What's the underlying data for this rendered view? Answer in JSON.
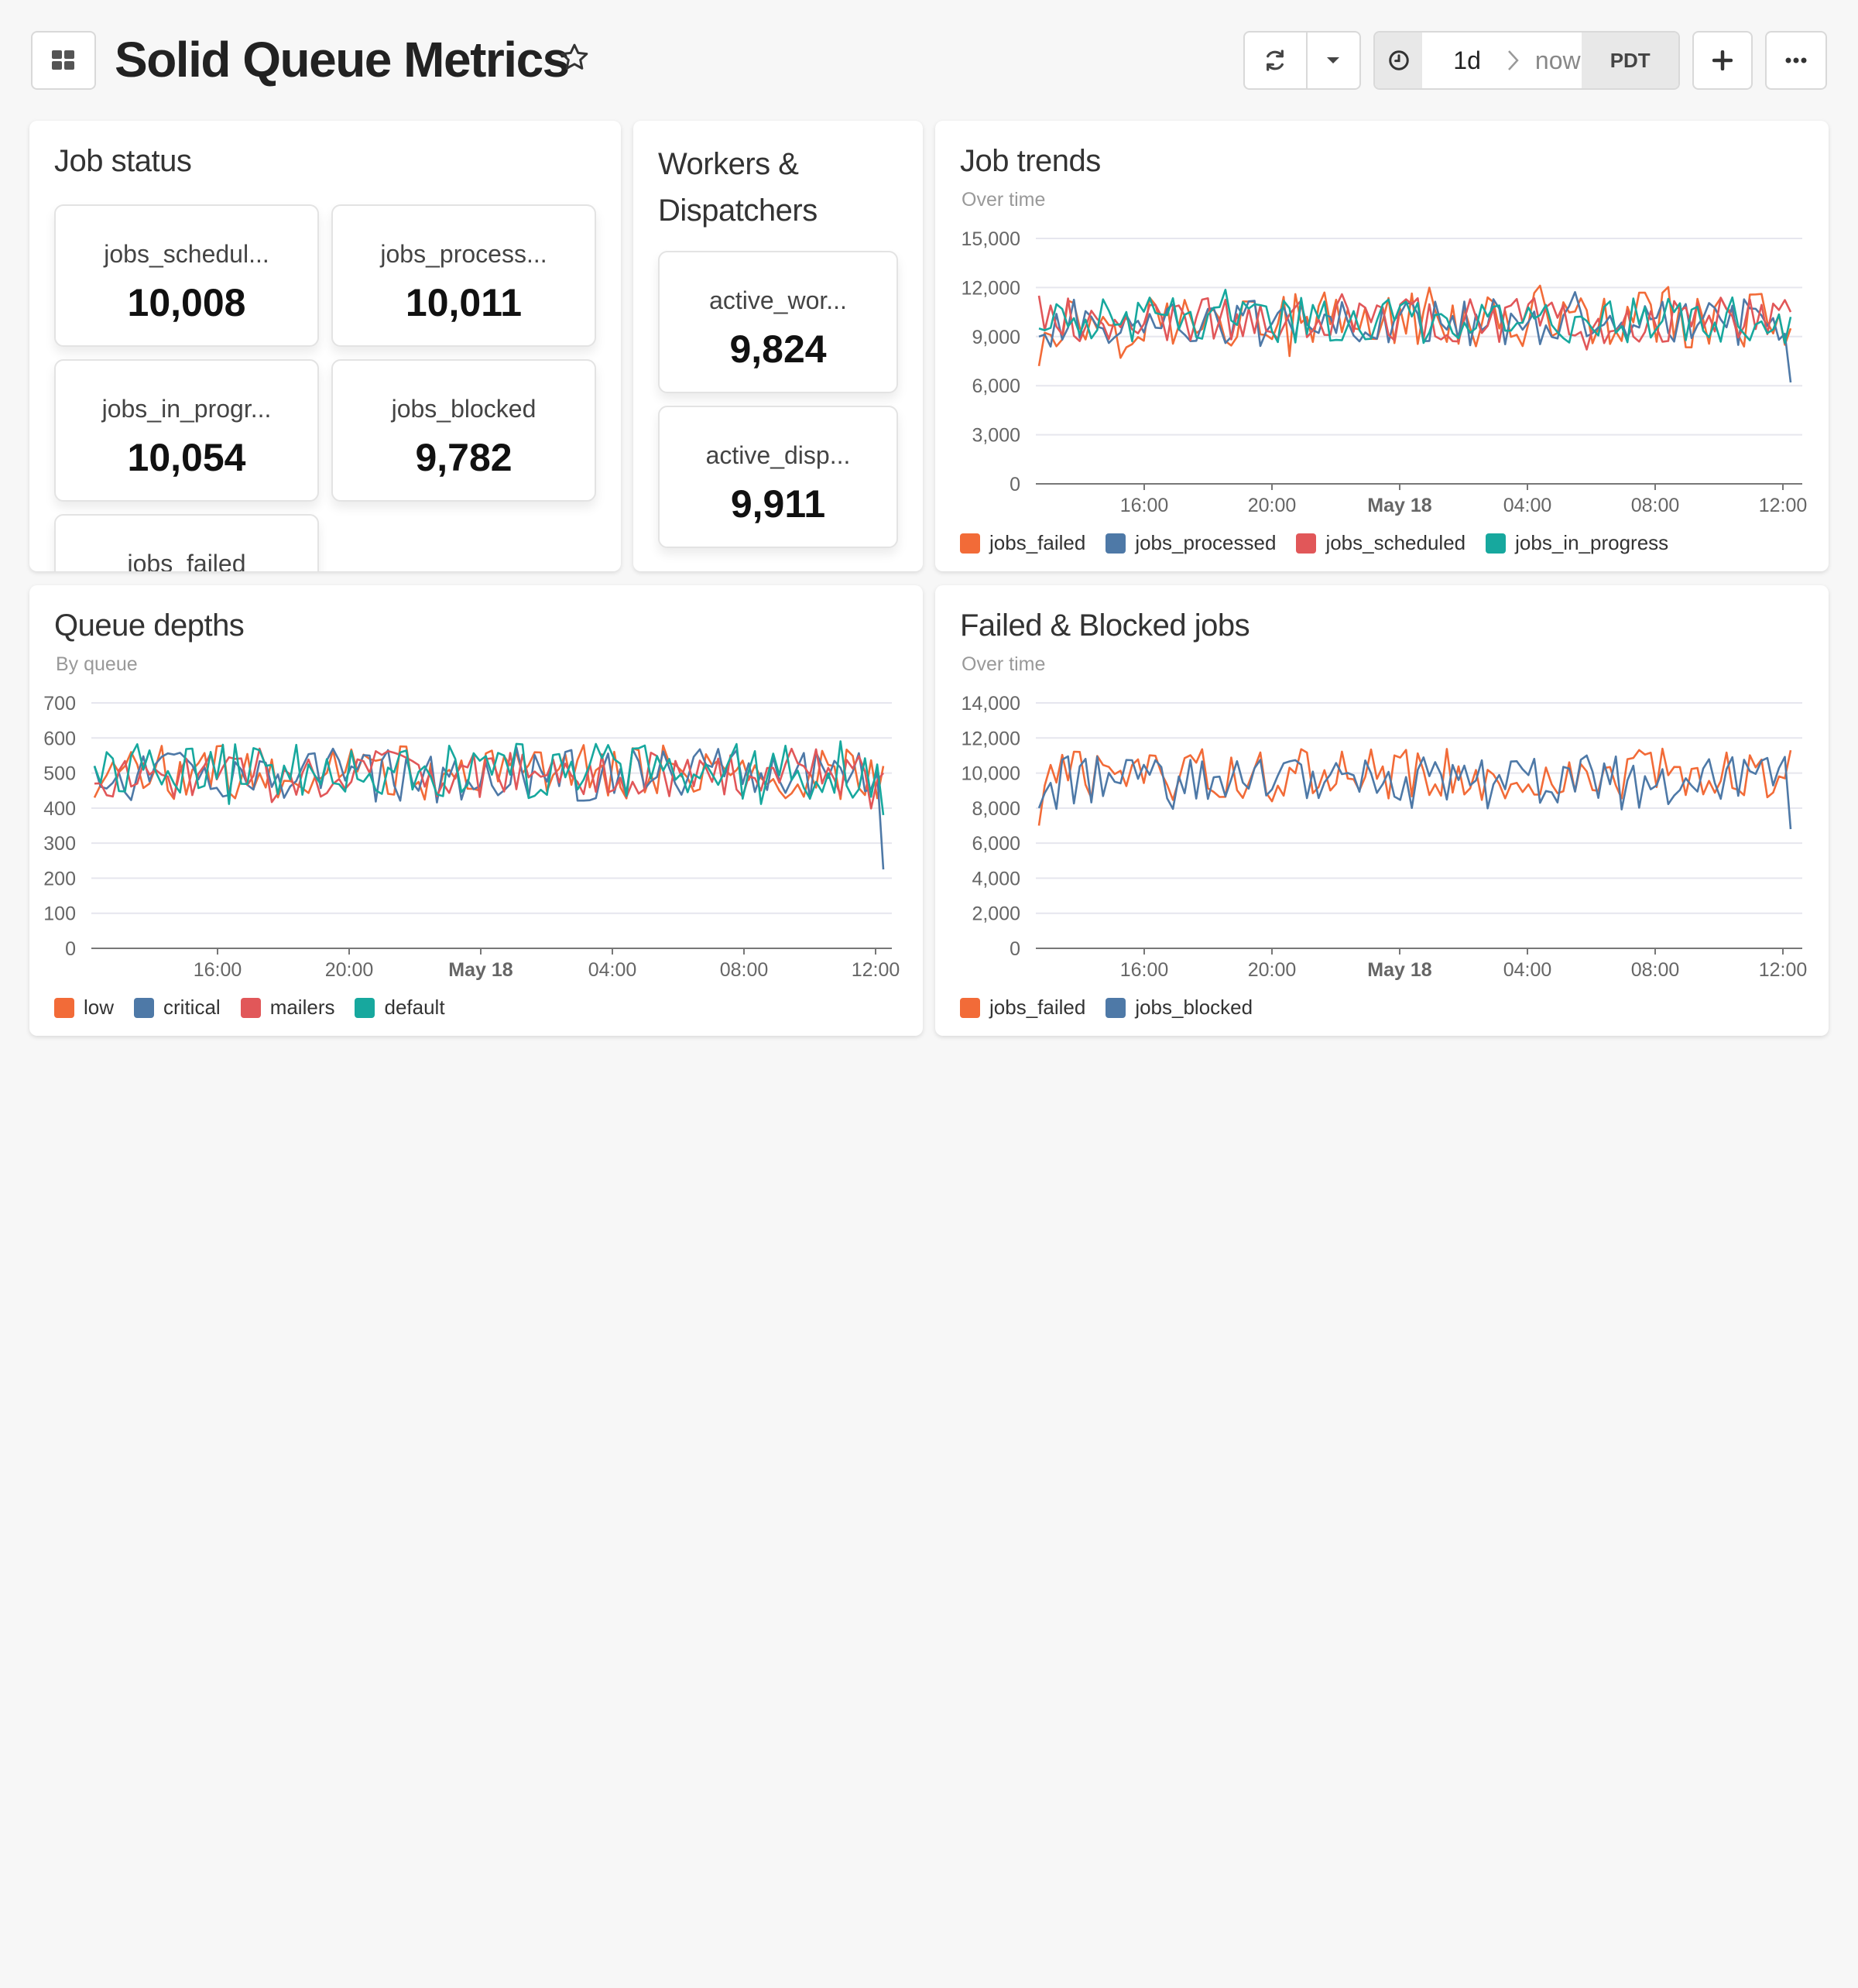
{
  "header": {
    "title": "Solid Queue Metrics",
    "time_range": "1d",
    "time_end": "now",
    "timezone": "PDT",
    "icons": {
      "grid": "grid-icon",
      "star": "star-icon",
      "refresh": "refresh-icon",
      "dropdown": "caret-down-icon",
      "clock": "clock-icon",
      "add": "plus-icon",
      "more": "ellipsis-icon"
    }
  },
  "job_status": {
    "title": "Job status",
    "stats": [
      {
        "label": "jobs_schedul...",
        "value": "10,008"
      },
      {
        "label": "jobs_process...",
        "value": "10,011"
      },
      {
        "label": "jobs_in_progr...",
        "value": "10,054"
      },
      {
        "label": "jobs_blocked",
        "value": "9,782"
      },
      {
        "label": "jobs_failed",
        "value": ""
      }
    ]
  },
  "workers": {
    "title_line1": "Workers &",
    "title_line2": "Dispatchers",
    "stats": [
      {
        "label": "active_wor...",
        "value": "9,824"
      },
      {
        "label": "active_disp...",
        "value": "9,911"
      }
    ]
  },
  "colors": {
    "orange": "#f26b38",
    "blue": "#4e79a7",
    "red": "#e15759",
    "teal": "#17a89e"
  },
  "chart_data": [
    {
      "id": "job_trends",
      "type": "line",
      "title": "Job trends",
      "subtitle": "Over time",
      "ylim": [
        0,
        15000
      ],
      "yticks": [
        "0",
        "3,000",
        "6,000",
        "9,000",
        "12,000",
        "15,000"
      ],
      "xticks": [
        "16:00",
        "20:00",
        "May 18",
        "04:00",
        "08:00",
        "12:00"
      ],
      "series": [
        {
          "name": "jobs_failed",
          "color": "#f26b38",
          "base": 10000,
          "amp": 1700,
          "end": 9500,
          "start": 7200
        },
        {
          "name": "jobs_processed",
          "color": "#4e79a7",
          "base": 9800,
          "amp": 1500,
          "end": 6200,
          "start": 9000
        },
        {
          "name": "jobs_scheduled",
          "color": "#e15759",
          "base": 10000,
          "amp": 1400,
          "end": 10500,
          "start": 11500
        },
        {
          "name": "jobs_in_progress",
          "color": "#17a89e",
          "base": 10000,
          "amp": 1400,
          "end": 10200,
          "start": 9500
        }
      ]
    },
    {
      "id": "queue_depths",
      "type": "line",
      "title": "Queue depths",
      "subtitle": "By queue",
      "ylim": [
        0,
        700
      ],
      "yticks": [
        "0",
        "100",
        "200",
        "300",
        "400",
        "500",
        "600",
        "700"
      ],
      "xticks": [
        "16:00",
        "20:00",
        "May 18",
        "04:00",
        "08:00",
        "12:00"
      ],
      "series": [
        {
          "name": "low",
          "color": "#f26b38",
          "base": 500,
          "amp": 80,
          "end": 520,
          "start": 430
        },
        {
          "name": "critical",
          "color": "#4e79a7",
          "base": 495,
          "amp": 80,
          "end": 225,
          "start": 520
        },
        {
          "name": "mailers",
          "color": "#e15759",
          "base": 500,
          "amp": 70,
          "end": 500,
          "start": 470
        },
        {
          "name": "default",
          "color": "#17a89e",
          "base": 505,
          "amp": 80,
          "end": 380,
          "start": 520
        }
      ]
    },
    {
      "id": "failed_blocked",
      "type": "line",
      "title": "Failed & Blocked jobs",
      "subtitle": "Over time",
      "ylim": [
        0,
        14000
      ],
      "yticks": [
        "0",
        "2,000",
        "4,000",
        "6,000",
        "8,000",
        "10,000",
        "12,000",
        "14,000"
      ],
      "xticks": [
        "16:00",
        "20:00",
        "May 18",
        "04:00",
        "08:00",
        "12:00"
      ],
      "series": [
        {
          "name": "jobs_failed",
          "color": "#f26b38",
          "base": 9900,
          "amp": 1500,
          "end": 11300,
          "start": 7000
        },
        {
          "name": "jobs_blocked",
          "color": "#4e79a7",
          "base": 9500,
          "amp": 1600,
          "end": 6800,
          "start": 8000
        }
      ]
    }
  ]
}
